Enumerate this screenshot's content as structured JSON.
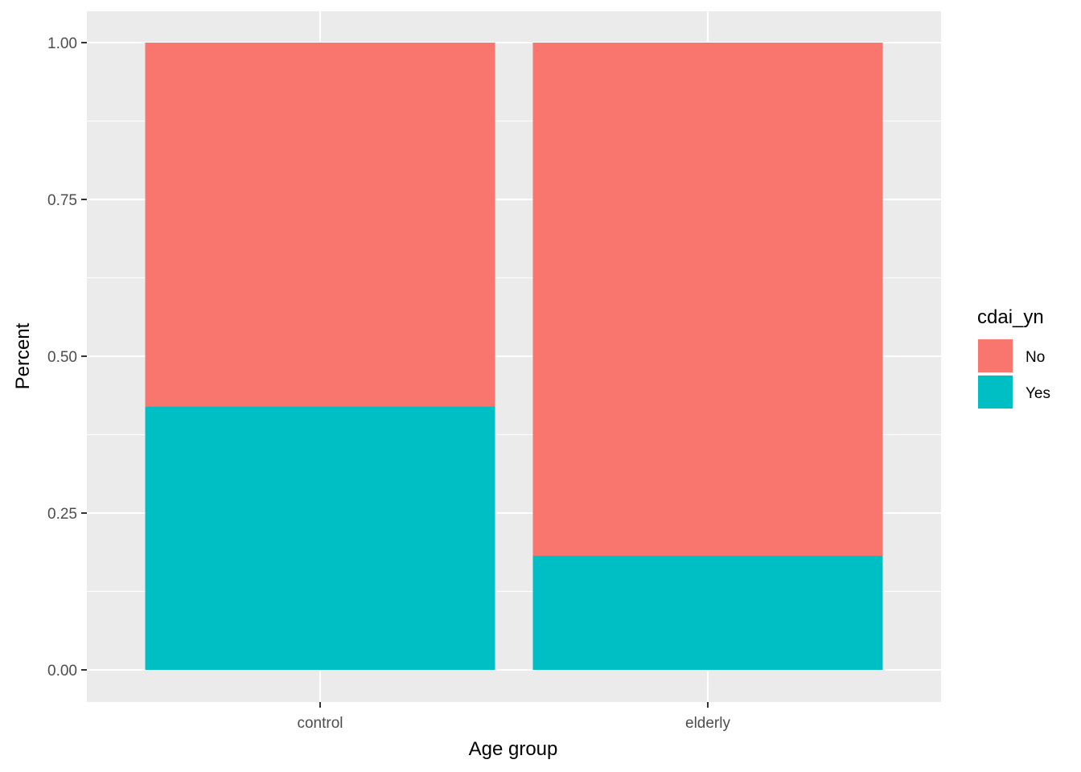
{
  "chart_data": {
    "type": "bar",
    "stacked": true,
    "categories": [
      "control",
      "elderly"
    ],
    "series": [
      {
        "name": "No",
        "values": [
          0.58,
          0.818
        ],
        "color": "#F8766D"
      },
      {
        "name": "Yes",
        "values": [
          0.42,
          0.182
        ],
        "color": "#00BFC4"
      }
    ],
    "xlabel": "Age group",
    "ylabel": "Percent",
    "ylim": [
      -0.05,
      1.05
    ],
    "yticks": [
      0,
      0.25,
      0.5,
      0.75,
      1.0
    ],
    "ytick_labels": [
      "0.00",
      "0.25",
      "0.50",
      "0.75",
      "1.00"
    ],
    "grid": true,
    "legend": {
      "title": "cdai_yn",
      "position": "right"
    },
    "panel_background": "#EBEBEB",
    "gridline_color": "#FFFFFF"
  }
}
